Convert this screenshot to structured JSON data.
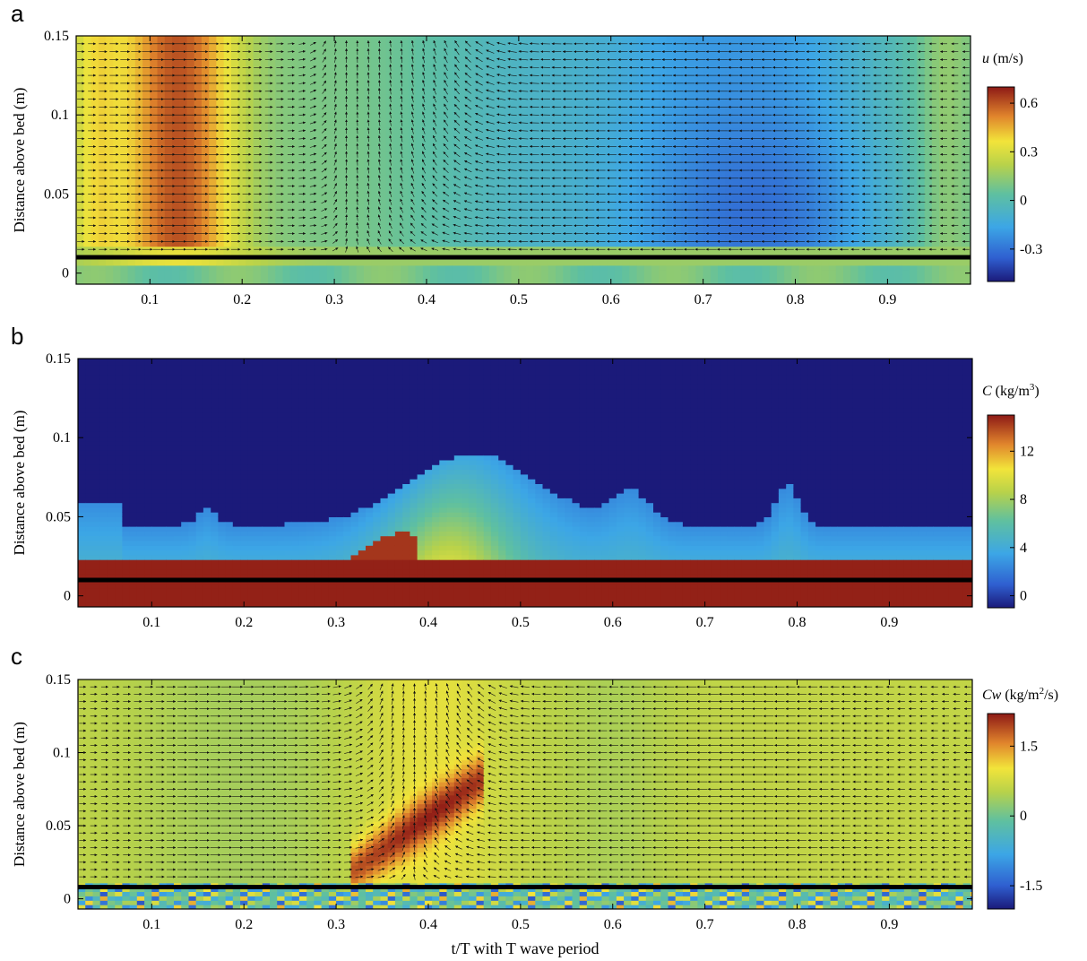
{
  "chart_data": [
    {
      "type": "heatmap",
      "panel": "a",
      "xlabel": "",
      "ylabel": "Distance above bed (m)",
      "xlim": [
        0.02,
        0.99
      ],
      "ylim": [
        -0.007,
        0.15
      ],
      "x_ticks": [
        0.1,
        0.2,
        0.3,
        0.4,
        0.5,
        0.6,
        0.7,
        0.8,
        0.9
      ],
      "y_ticks": [
        0,
        0.05,
        0.1,
        0.15
      ],
      "colorbar": {
        "var": "u",
        "unit": " (m/s)",
        "sup": "",
        "unit_end": "",
        "range": [
          -0.5,
          0.7
        ],
        "ticks": [
          0.6,
          0.3,
          0,
          -0.3
        ]
      },
      "bed_level": 0.01,
      "has_vectors": true,
      "description_regions": [
        {
          "x": [
            0.05,
            0.2
          ],
          "value": 0.6
        },
        {
          "x": [
            0.6,
            0.92
          ],
          "value": -0.4
        }
      ]
    },
    {
      "type": "heatmap",
      "panel": "b",
      "xlabel": "",
      "ylabel": "Distance above bed (m)",
      "xlim": [
        0.02,
        0.99
      ],
      "ylim": [
        -0.007,
        0.15
      ],
      "x_ticks": [
        0.1,
        0.2,
        0.3,
        0.4,
        0.5,
        0.6,
        0.7,
        0.8,
        0.9
      ],
      "y_ticks": [
        0,
        0.05,
        0.1,
        0.15
      ],
      "colorbar": {
        "var": "C",
        "unit": " (kg/m",
        "sup": "3",
        "unit_end": ")",
        "range": [
          -1,
          15
        ],
        "ticks": [
          12,
          8,
          4,
          0
        ]
      },
      "bed_level": 0.01,
      "has_vectors": false
    },
    {
      "type": "heatmap",
      "panel": "c",
      "xlabel": "t/T with T wave period",
      "ylabel": "Distance above bed (m)",
      "xlim": [
        0.02,
        0.99
      ],
      "ylim": [
        -0.007,
        0.15
      ],
      "x_ticks": [
        0.1,
        0.2,
        0.3,
        0.4,
        0.5,
        0.6,
        0.7,
        0.8,
        0.9
      ],
      "y_ticks": [
        0,
        0.05,
        0.1,
        0.15
      ],
      "colorbar": {
        "var": "Cw",
        "unit": " (kg/m",
        "sup": "2",
        "unit_end": "/s)",
        "range": [
          -2,
          2.2
        ],
        "ticks": [
          1.5,
          0,
          -1.5
        ]
      },
      "bed_level": 0.008,
      "has_vectors": true
    }
  ]
}
